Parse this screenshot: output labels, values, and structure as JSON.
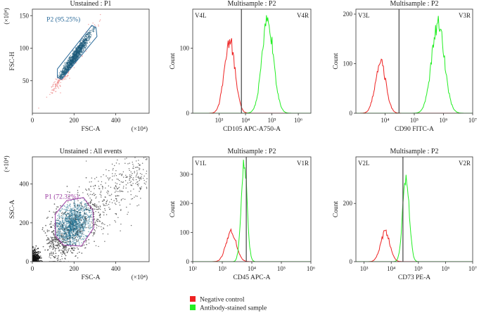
{
  "colors": {
    "negative": "#ee2222",
    "antibody": "#22ee22",
    "gate_p2": "#2a6a9a",
    "gate_p1": "#9a3aa0",
    "dots_p2": "#1b5a7a",
    "dots_p1_core": "#1f6e8e",
    "dots_scatter": "#333333",
    "marker": "#444444"
  },
  "legend": {
    "items": [
      {
        "label": "Negative control",
        "color": "#ee2222"
      },
      {
        "label": "Antibody-stained sample",
        "color": "#22ee22"
      }
    ]
  },
  "chart_data": [
    {
      "id": "fsc_ssc_p2",
      "type": "scatter",
      "title": "Unstained : P1",
      "xlabel": "FSC-A",
      "ylabel": "FSC-H",
      "x_multiplier": "(×10⁴)",
      "y_multiplier": "(×10⁴)",
      "xlim": [
        0,
        560
      ],
      "ylim": [
        0,
        160
      ],
      "xticks": [
        0,
        200,
        400
      ],
      "xtick_labels": [
        "0",
        "200",
        "400"
      ],
      "yticks": [
        50,
        100,
        150
      ],
      "ytick_labels": [
        "50",
        "100",
        "150"
      ],
      "gate": {
        "name": "P2",
        "label": "P2 (95.25%)",
        "percent": 95.25,
        "polygon": [
          [
            120,
            55
          ],
          [
            140,
            52
          ],
          [
            310,
            118
          ],
          [
            305,
            132
          ],
          [
            285,
            135
          ],
          [
            120,
            68
          ]
        ]
      },
      "density": {
        "center": [
          200,
          85
        ],
        "trend_slope": 0.47,
        "n_points": 1100
      }
    },
    {
      "id": "hist_cd105",
      "type": "area",
      "title": "Multisample : P2",
      "xlabel": "CD105 APC-A750-A",
      "ylabel": "Count",
      "x_scale": "log",
      "xlim": [
        100,
        3000000
      ],
      "ylim": [
        0,
        160
      ],
      "xticks": [
        1000,
        10000,
        100000,
        1000000
      ],
      "xtick_labels": [
        "10³",
        "10⁴",
        "10⁵",
        "10⁶"
      ],
      "yticks": [
        0,
        100
      ],
      "ytick_labels": [
        "0",
        "100"
      ],
      "marker_x": 7000,
      "regions": {
        "left": "V4L",
        "right": "V4R"
      },
      "series": [
        {
          "name": "Negative control",
          "peak_x": 2500,
          "peak_count": 112,
          "log_width": 0.2
        },
        {
          "name": "Antibody-stained sample",
          "peak_x": 70000,
          "peak_count": 140,
          "log_width": 0.22
        }
      ]
    },
    {
      "id": "hist_cd90",
      "type": "area",
      "title": "Multisample : P2",
      "xlabel": "CD90 FITC-A",
      "ylabel": "Count",
      "x_scale": "log",
      "xlim": [
        1000,
        10000000
      ],
      "ylim": [
        0,
        210
      ],
      "xticks": [
        10000,
        100000,
        1000000,
        10000000
      ],
      "xtick_labels": [
        "10⁴",
        "10⁵",
        "10⁶",
        "10⁷"
      ],
      "yticks": [
        0,
        100,
        200
      ],
      "ytick_labels": [
        "0",
        "100",
        "200"
      ],
      "marker_x": 30000,
      "regions": {
        "left": "V3L",
        "right": "V3R"
      },
      "series": [
        {
          "name": "Negative control",
          "peak_x": 7000,
          "peak_count": 103,
          "log_width": 0.18
        },
        {
          "name": "Antibody-stained sample",
          "peak_x": 650000,
          "peak_count": 178,
          "log_width": 0.22
        }
      ]
    },
    {
      "id": "fsc_ssc_p1",
      "type": "scatter",
      "title": "Unstained : All events",
      "xlabel": "FSC-A",
      "ylabel": "SSC-A",
      "x_multiplier": "(×10⁴)",
      "y_multiplier": "(×10⁴)",
      "xlim": [
        0,
        560
      ],
      "ylim": [
        0,
        540
      ],
      "xticks": [
        0,
        200,
        400
      ],
      "xtick_labels": [
        "0",
        "200",
        "400"
      ],
      "yticks": [
        0,
        200,
        400
      ],
      "ytick_labels": [
        "0",
        "200",
        "400"
      ],
      "gate": {
        "name": "P1",
        "label": "P1 (72.32%)",
        "percent": 72.32,
        "polygon": [
          [
            110,
            135
          ],
          [
            150,
            85
          ],
          [
            235,
            80
          ],
          [
            295,
            175
          ],
          [
            290,
            265
          ],
          [
            245,
            330
          ],
          [
            165,
            315
          ],
          [
            110,
            245
          ]
        ]
      },
      "density": {
        "center": [
          190,
          185
        ],
        "n_points": 1500
      }
    },
    {
      "id": "hist_cd45",
      "type": "area",
      "title": "Multisample : P2",
      "xlabel": "CD45 APC-A",
      "ylabel": "Count",
      "x_scale": "log",
      "xlim": [
        100,
        1000000
      ],
      "ylim": [
        0,
        360
      ],
      "xticks": [
        100,
        1000,
        10000,
        100000,
        1000000
      ],
      "xtick_labels": [
        "10²",
        "10³",
        "10⁴",
        "10⁵",
        "10⁶"
      ],
      "yticks": [
        0,
        100,
        200,
        300
      ],
      "ytick_labels": [
        "0",
        "100",
        "200",
        "300"
      ],
      "marker_x": 6500,
      "regions": {
        "left": "V1L",
        "right": "V1R"
      },
      "series": [
        {
          "name": "Negative control",
          "peak_x": 2000,
          "peak_count": 105,
          "log_width": 0.17
        },
        {
          "name": "Antibody-stained sample",
          "peak_x": 5500,
          "peak_count": 335,
          "log_width": 0.1
        }
      ]
    },
    {
      "id": "hist_cd73",
      "type": "area",
      "title": "Multisample : P2",
      "xlabel": "CD73 PE-A",
      "ylabel": "Count",
      "x_scale": "log",
      "xlim": [
        500,
        10000000
      ],
      "ylim": [
        0,
        360
      ],
      "xticks": [
        1000,
        10000,
        100000,
        1000000,
        10000000
      ],
      "xtick_labels": [
        "10³",
        "10⁴",
        "10⁵",
        "10⁶",
        "10⁷"
      ],
      "yticks": [
        0,
        200
      ],
      "ytick_labels": [
        "0",
        "200"
      ],
      "marker_x": 27000,
      "regions": {
        "left": "V2L",
        "right": "V2R"
      },
      "series": [
        {
          "name": "Negative control",
          "peak_x": 6000,
          "peak_count": 100,
          "log_width": 0.17
        },
        {
          "name": "Antibody-stained sample",
          "peak_x": 35000,
          "peak_count": 290,
          "log_width": 0.12
        }
      ]
    }
  ]
}
